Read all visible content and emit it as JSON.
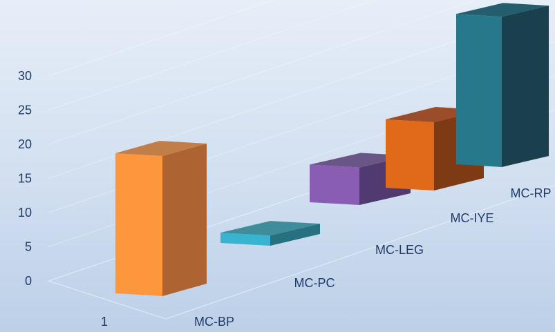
{
  "chart_data": {
    "type": "bar",
    "title": "",
    "xlabel": "",
    "ylabel": "",
    "x_tick": "1",
    "ylim": [
      0,
      30
    ],
    "yticks": [
      "0",
      "5",
      "10",
      "15",
      "20",
      "25",
      "30"
    ],
    "grid": true,
    "legend": "none",
    "series": [
      {
        "name": "MC-BP",
        "value": 20.5,
        "colors": {
          "front": "#fd973e",
          "side": "#ad6332",
          "top": "#c27e48"
        }
      },
      {
        "name": "MC-PC",
        "value": 1.5,
        "colors": {
          "front": "#38b3d0",
          "side": "#26707f",
          "top": "#3f8c9a"
        }
      },
      {
        "name": "MC-LEG",
        "value": 5.5,
        "colors": {
          "front": "#8a5db4",
          "side": "#503a70",
          "top": "#6a5686"
        }
      },
      {
        "name": "MC-IYE",
        "value": 10,
        "colors": {
          "front": "#e06a1a",
          "side": "#7e3a12",
          "top": "#9b4d2a"
        }
      },
      {
        "name": "MC-RP",
        "value": 22,
        "colors": {
          "front": "#28788c",
          "side": "#19404c",
          "top": "#245d6e"
        }
      }
    ]
  }
}
